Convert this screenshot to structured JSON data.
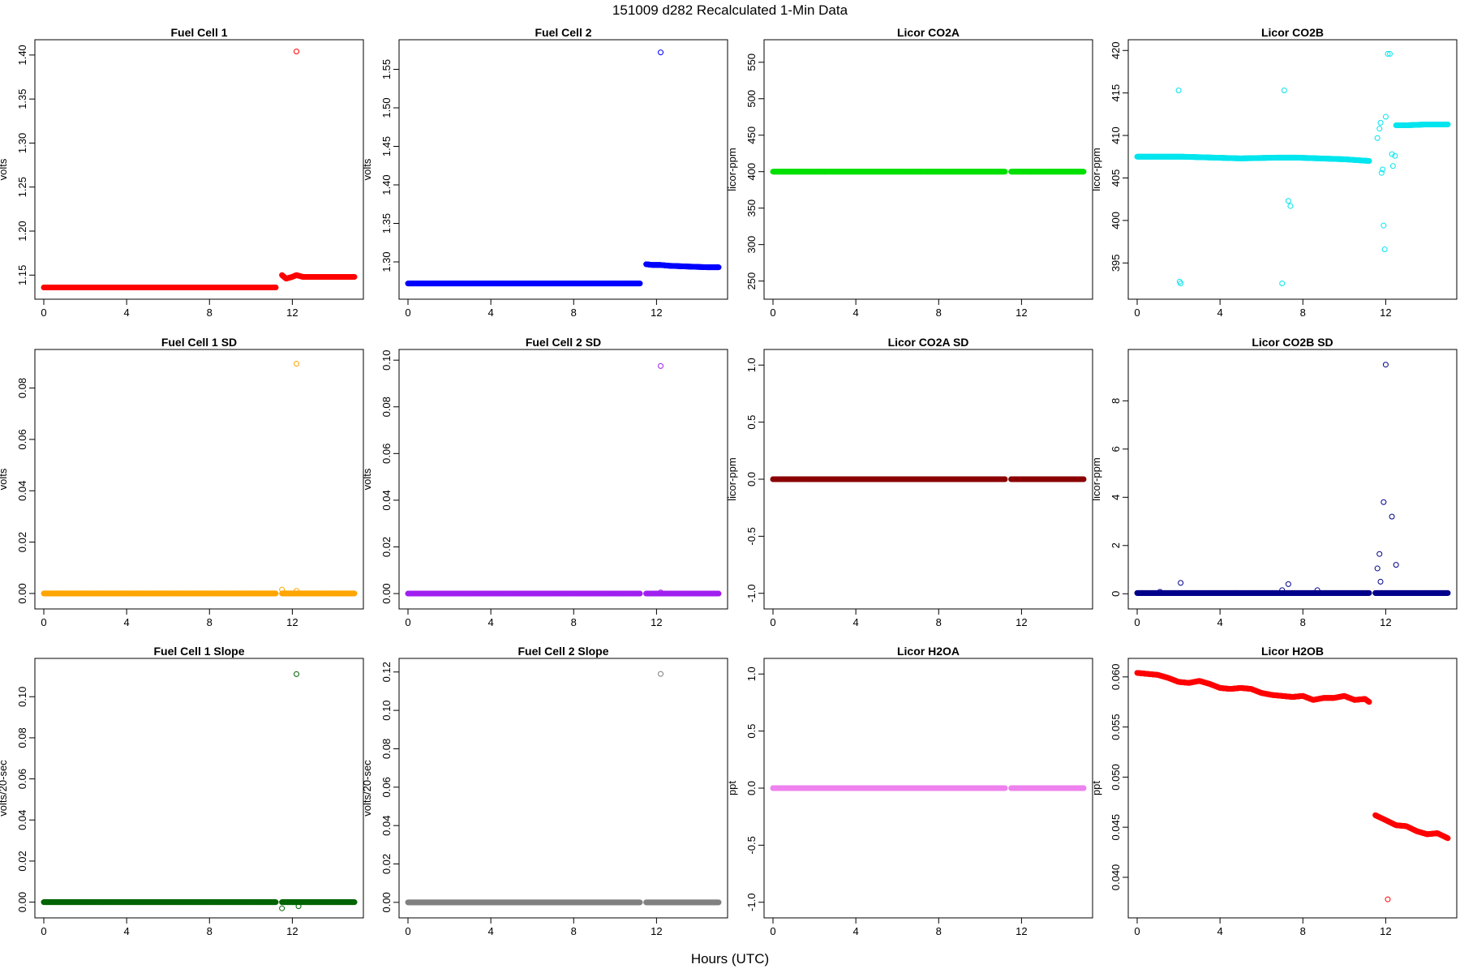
{
  "title": "151009   d282   Recalculated 1-Min Data",
  "xlabel": "Hours (UTC)",
  "chart_data": [
    {
      "id": "fc1",
      "type": "scatter",
      "title": "Fuel Cell 1",
      "ylabel": "volts",
      "color": "#ff0000",
      "xlim": [
        0,
        15
      ],
      "ylim": [
        1.13,
        1.41
      ],
      "xticks": [
        0,
        4,
        8,
        12
      ],
      "yticks": [
        1.15,
        1.2,
        1.25,
        1.3,
        1.35,
        1.4
      ],
      "ytick_labels": [
        "1.15",
        "1.20",
        "1.25",
        "1.30",
        "1.35",
        "1.40"
      ],
      "segments": [
        {
          "x": [
            0,
            11.2
          ],
          "y": [
            1.136,
            1.136
          ]
        },
        {
          "x": [
            11.5,
            11.7,
            12.0,
            12.2,
            12.5,
            13.0,
            14.0,
            15.0
          ],
          "y": [
            1.15,
            1.146,
            1.148,
            1.15,
            1.148,
            1.148,
            1.148,
            1.148
          ]
        }
      ],
      "points": [
        {
          "x": 12.2,
          "y": 1.404
        }
      ]
    },
    {
      "id": "fc2",
      "type": "scatter",
      "title": "Fuel Cell 2",
      "ylabel": "volts",
      "color": "#0000ff",
      "xlim": [
        0,
        15
      ],
      "ylim": [
        1.26,
        1.58
      ],
      "xticks": [
        0,
        4,
        8,
        12
      ],
      "yticks": [
        1.3,
        1.35,
        1.4,
        1.45,
        1.5,
        1.55
      ],
      "ytick_labels": [
        "1.30",
        "1.35",
        "1.40",
        "1.45",
        "1.50",
        "1.55"
      ],
      "segments": [
        {
          "x": [
            0,
            11.2
          ],
          "y": [
            1.272,
            1.272
          ]
        },
        {
          "x": [
            11.5,
            11.8,
            12.2,
            12.6,
            13.5,
            14.5,
            15.0
          ],
          "y": [
            1.297,
            1.296,
            1.296,
            1.295,
            1.294,
            1.293,
            1.293
          ]
        }
      ],
      "points": [
        {
          "x": 12.2,
          "y": 1.572
        }
      ]
    },
    {
      "id": "co2a",
      "type": "scatter",
      "title": "Licor CO2A",
      "ylabel": "licor-ppm",
      "color": "#00e000",
      "xlim": [
        0,
        15
      ],
      "ylim": [
        234,
        572
      ],
      "xticks": [
        0,
        4,
        8,
        12
      ],
      "yticks": [
        250,
        300,
        350,
        400,
        450,
        500,
        550
      ],
      "ytick_labels": [
        "250",
        "300",
        "350",
        "400",
        "450",
        "500",
        "550"
      ],
      "segments": [
        {
          "x": [
            0,
            11.2
          ],
          "y": [
            400,
            400
          ]
        },
        {
          "x": [
            11.5,
            15.0
          ],
          "y": [
            400,
            400
          ]
        }
      ],
      "points": []
    },
    {
      "id": "co2b",
      "type": "scatter",
      "title": "Licor CO2B",
      "ylabel": "licor-ppm",
      "color": "#00e5ee",
      "xlim": [
        0,
        15
      ],
      "ylim": [
        391.5,
        420.5
      ],
      "xticks": [
        0,
        4,
        8,
        12
      ],
      "yticks": [
        395,
        400,
        405,
        410,
        415,
        420
      ],
      "ytick_labels": [
        "395",
        "400",
        "405",
        "410",
        "415",
        "420"
      ],
      "segments": [
        {
          "x": [
            0,
            1.8,
            2.2,
            5,
            6.9,
            7.6,
            10,
            11.2
          ],
          "y": [
            407.5,
            407.5,
            407.5,
            407.3,
            407.4,
            407.4,
            407.2,
            407.0
          ]
        },
        {
          "x": [
            12.5,
            13,
            14,
            15
          ],
          "y": [
            411.2,
            411.2,
            411.3,
            411.3
          ]
        }
      ],
      "points": [
        {
          "x": 2.0,
          "y": 415.3
        },
        {
          "x": 2.05,
          "y": 392.8
        },
        {
          "x": 2.1,
          "y": 392.6
        },
        {
          "x": 7.0,
          "y": 392.6
        },
        {
          "x": 7.1,
          "y": 415.3
        },
        {
          "x": 7.3,
          "y": 402.3
        },
        {
          "x": 7.4,
          "y": 401.7
        },
        {
          "x": 11.6,
          "y": 409.7
        },
        {
          "x": 11.7,
          "y": 410.8
        },
        {
          "x": 11.75,
          "y": 411.5
        },
        {
          "x": 11.8,
          "y": 405.6
        },
        {
          "x": 11.85,
          "y": 406.0
        },
        {
          "x": 11.9,
          "y": 399.4
        },
        {
          "x": 11.95,
          "y": 396.6
        },
        {
          "x": 12.0,
          "y": 412.2
        },
        {
          "x": 12.1,
          "y": 419.6
        },
        {
          "x": 12.2,
          "y": 419.6
        },
        {
          "x": 12.3,
          "y": 407.8
        },
        {
          "x": 12.35,
          "y": 406.4
        },
        {
          "x": 12.45,
          "y": 407.6
        }
      ]
    },
    {
      "id": "fc1sd",
      "type": "scatter",
      "title": "Fuel Cell 1 SD",
      "ylabel": "volts",
      "color": "#ffa500",
      "xlim": [
        0,
        15
      ],
      "ylim": [
        -0.0035,
        0.0925
      ],
      "xticks": [
        0,
        4,
        8,
        12
      ],
      "yticks": [
        0,
        0.02,
        0.04,
        0.06,
        0.08
      ],
      "ytick_labels": [
        "0.00",
        "0.02",
        "0.04",
        "0.06",
        "0.08"
      ],
      "segments": [
        {
          "x": [
            0,
            11.2
          ],
          "y": [
            0,
            0
          ]
        },
        {
          "x": [
            11.5,
            15.0
          ],
          "y": [
            0,
            0
          ]
        }
      ],
      "points": [
        {
          "x": 11.5,
          "y": 0.0015
        },
        {
          "x": 12.2,
          "y": 0.001
        },
        {
          "x": 12.2,
          "y": 0.0895
        }
      ]
    },
    {
      "id": "fc2sd",
      "type": "scatter",
      "title": "Fuel Cell 2 SD",
      "ylabel": "volts",
      "color": "#a020f0",
      "xlim": [
        0,
        15
      ],
      "ylim": [
        -0.0038,
        0.1018
      ],
      "xticks": [
        0,
        4,
        8,
        12
      ],
      "yticks": [
        0,
        0.02,
        0.04,
        0.06,
        0.08,
        0.1
      ],
      "ytick_labels": [
        "0.00",
        "0.02",
        "0.04",
        "0.06",
        "0.08",
        "0.10"
      ],
      "segments": [
        {
          "x": [
            0,
            11.2
          ],
          "y": [
            0,
            0
          ]
        },
        {
          "x": [
            11.5,
            15.0
          ],
          "y": [
            0,
            0
          ]
        }
      ],
      "points": [
        {
          "x": 12.2,
          "y": 0.0005
        },
        {
          "x": 12.2,
          "y": 0.0975
        }
      ]
    },
    {
      "id": "co2asd",
      "type": "scatter",
      "title": "Licor CO2A SD",
      "ylabel": "licor-ppm",
      "color": "#8b0000",
      "xlim": [
        0,
        15
      ],
      "ylim": [
        -1.08,
        1.08
      ],
      "xticks": [
        0,
        4,
        8,
        12
      ],
      "yticks": [
        -1,
        -0.5,
        0,
        0.5,
        1
      ],
      "ytick_labels": [
        "-1.0",
        "-0.5",
        "0.0",
        "0.5",
        "1.0"
      ],
      "segments": [
        {
          "x": [
            0,
            11.2
          ],
          "y": [
            0,
            0
          ]
        },
        {
          "x": [
            11.5,
            15.0
          ],
          "y": [
            0,
            0
          ]
        }
      ],
      "points": []
    },
    {
      "id": "co2bsd",
      "type": "scatter",
      "title": "Licor CO2B SD",
      "ylabel": "licor-ppm",
      "color": "#00008b",
      "xlim": [
        0,
        15
      ],
      "ylim": [
        -0.36,
        9.86
      ],
      "xticks": [
        0,
        4,
        8,
        12
      ],
      "yticks": [
        0,
        2,
        4,
        6,
        8
      ],
      "ytick_labels": [
        "0",
        "2",
        "4",
        "6",
        "8"
      ],
      "segments": [
        {
          "x": [
            0,
            11.2
          ],
          "y": [
            0.03,
            0.03
          ]
        },
        {
          "x": [
            11.5,
            15.0
          ],
          "y": [
            0.03,
            0.03
          ]
        }
      ],
      "points": [
        {
          "x": 1.1,
          "y": 0.08
        },
        {
          "x": 2.1,
          "y": 0.45
        },
        {
          "x": 7.0,
          "y": 0.15
        },
        {
          "x": 7.3,
          "y": 0.4
        },
        {
          "x": 8.7,
          "y": 0.15
        },
        {
          "x": 11.6,
          "y": 1.05
        },
        {
          "x": 11.7,
          "y": 1.65
        },
        {
          "x": 11.75,
          "y": 0.5
        },
        {
          "x": 11.9,
          "y": 3.8
        },
        {
          "x": 12.0,
          "y": 9.5
        },
        {
          "x": 12.3,
          "y": 3.2
        },
        {
          "x": 12.5,
          "y": 1.2
        }
      ]
    },
    {
      "id": "fc1slope",
      "type": "scatter",
      "title": "Fuel Cell 1 Slope",
      "ylabel": "volts/20-sec",
      "color": "#006400",
      "xlim": [
        0,
        15
      ],
      "ylim": [
        -0.0045,
        0.1155
      ],
      "xticks": [
        0,
        4,
        8,
        12
      ],
      "yticks": [
        0,
        0.02,
        0.04,
        0.06,
        0.08,
        0.1
      ],
      "ytick_labels": [
        "0.00",
        "0.02",
        "0.04",
        "0.06",
        "0.08",
        "0.10"
      ],
      "segments": [
        {
          "x": [
            0,
            11.2
          ],
          "y": [
            0,
            0
          ]
        },
        {
          "x": [
            11.5,
            15.0
          ],
          "y": [
            0,
            0
          ]
        }
      ],
      "points": [
        {
          "x": 11.5,
          "y": -0.003
        },
        {
          "x": 12.3,
          "y": -0.002
        },
        {
          "x": 12.2,
          "y": 0.111
        }
      ]
    },
    {
      "id": "fc2slope",
      "type": "scatter",
      "title": "Fuel Cell 2 Slope",
      "ylabel": "volts/20-sec",
      "color": "#808080",
      "xlim": [
        0,
        15
      ],
      "ylim": [
        -0.0047,
        0.1237
      ],
      "xticks": [
        0,
        4,
        8,
        12
      ],
      "yticks": [
        0,
        0.02,
        0.04,
        0.06,
        0.08,
        0.1,
        0.12
      ],
      "ytick_labels": [
        "0.00",
        "0.02",
        "0.04",
        "0.06",
        "0.08",
        "0.10",
        "0.12"
      ],
      "segments": [
        {
          "x": [
            0,
            11.2
          ],
          "y": [
            0,
            0
          ]
        },
        {
          "x": [
            11.5,
            15.0
          ],
          "y": [
            0,
            0
          ]
        }
      ],
      "points": [
        {
          "x": 12.2,
          "y": 0.119
        }
      ]
    },
    {
      "id": "h2oa",
      "type": "scatter",
      "title": "Licor H2OA",
      "ylabel": "ppt",
      "color": "#ee82ee",
      "xlim": [
        0,
        15
      ],
      "ylim": [
        -1.08,
        1.08
      ],
      "xticks": [
        0,
        4,
        8,
        12
      ],
      "yticks": [
        -1,
        -0.5,
        0,
        0.5,
        1
      ],
      "ytick_labels": [
        "-1.0",
        "-0.5",
        "0.0",
        "0.5",
        "1.0"
      ],
      "segments": [
        {
          "x": [
            0,
            11.2
          ],
          "y": [
            0,
            0
          ]
        },
        {
          "x": [
            11.5,
            15.0
          ],
          "y": [
            0,
            0
          ]
        }
      ],
      "points": []
    },
    {
      "id": "h2ob",
      "type": "scatter",
      "title": "Licor H2OB",
      "ylabel": "ppt",
      "color": "#ff0000",
      "xlim": [
        0,
        15
      ],
      "ylim": [
        0.0366,
        0.0612
      ],
      "xticks": [
        0,
        4,
        8,
        12
      ],
      "yticks": [
        0.04,
        0.045,
        0.05,
        0.055,
        0.06
      ],
      "ytick_labels": [
        "0.040",
        "0.045",
        "0.050",
        "0.055",
        "0.060"
      ],
      "segments": [
        {
          "x": [
            0,
            0.5,
            1.0,
            1.5,
            2.0,
            2.5,
            3.0,
            3.5,
            4.0,
            4.5,
            5.0,
            5.5,
            6.0,
            6.5,
            7.0,
            7.5,
            8.0,
            8.5,
            9.0,
            9.5,
            10.0,
            10.5,
            11.0,
            11.2
          ],
          "y": [
            0.0604,
            0.0603,
            0.0602,
            0.0599,
            0.0595,
            0.0594,
            0.0596,
            0.0593,
            0.0589,
            0.0588,
            0.0589,
            0.0588,
            0.0584,
            0.0582,
            0.0581,
            0.058,
            0.0581,
            0.0577,
            0.0579,
            0.0579,
            0.0581,
            0.0577,
            0.0578,
            0.0575
          ]
        },
        {
          "x": [
            11.5,
            12.0,
            12.5,
            13.0,
            13.5,
            14.0,
            14.5,
            15.0
          ],
          "y": [
            0.0462,
            0.0457,
            0.0452,
            0.0451,
            0.0446,
            0.0443,
            0.0444,
            0.0439
          ]
        }
      ],
      "points": [
        {
          "x": 12.1,
          "y": 0.0378
        }
      ]
    }
  ]
}
